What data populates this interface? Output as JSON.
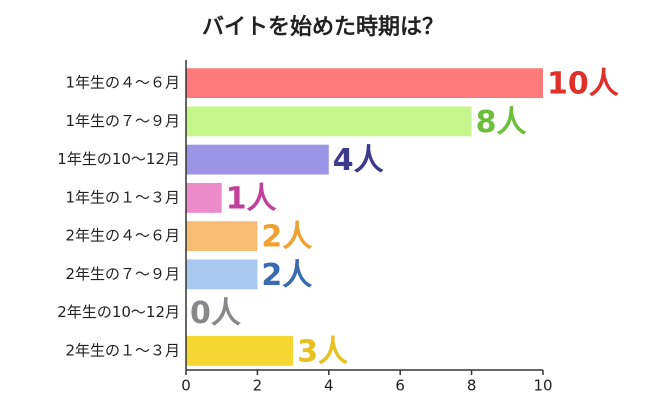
{
  "chart_data": {
    "type": "bar",
    "orientation": "horizontal",
    "title": "バイトを始めた時期は？",
    "categories": [
      "1年生の４～６月",
      "1年生の７～９月",
      "1年生の10～12月",
      "1年生の１～３月",
      "2年生の４～６月",
      "2年生の７～９月",
      "2年生の10～12月",
      "2年生の１～３月"
    ],
    "values": [
      10,
      8,
      4,
      1,
      2,
      2,
      0,
      3
    ],
    "value_labels": [
      "10人",
      "8人",
      "4人",
      "1人",
      "2人",
      "2人",
      "0人",
      "3人"
    ],
    "colors": [
      "#ff7b7b",
      "#c6f58c",
      "#9c95e5",
      "#ec8cca",
      "#f7bd73",
      "#a8c8f0",
      "#cccccc",
      "#f6d631"
    ],
    "label_colors": [
      "#e0302a",
      "#6cbf3a",
      "#3b3a8c",
      "#c2409b",
      "#f0a030",
      "#3a6ab0",
      "#888888",
      "#e8c020"
    ],
    "xlim": [
      0,
      10
    ],
    "xticks": [
      0,
      2,
      4,
      6,
      8,
      10
    ],
    "grid": false
  }
}
